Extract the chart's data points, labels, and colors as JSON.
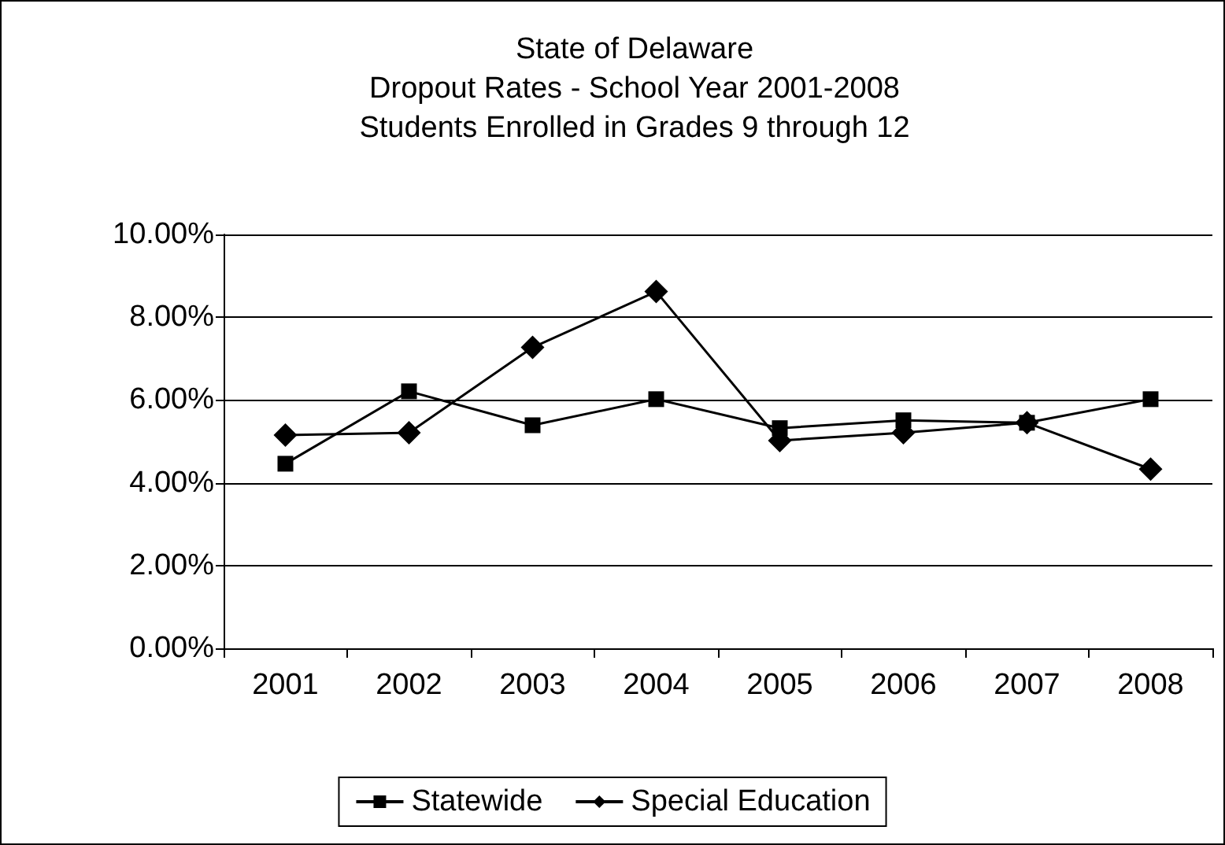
{
  "chart_data": {
    "type": "line",
    "title": "State of Delaware\nDropout Rates - School Year 2001-2008\nStudents Enrolled in Grades 9 through 12",
    "categories": [
      "2001",
      "2002",
      "2003",
      "2004",
      "2005",
      "2006",
      "2007",
      "2008"
    ],
    "series": [
      {
        "name": "Statewide",
        "color": "#000000",
        "marker": "square",
        "values": [
          4.46,
          6.21,
          5.39,
          6.02,
          5.32,
          5.51,
          5.45,
          6.02
        ]
      },
      {
        "name": "Special Education",
        "color": "#000000",
        "marker": "diamond",
        "values": [
          5.15,
          5.21,
          7.27,
          8.62,
          5.02,
          5.21,
          5.45,
          4.33
        ]
      }
    ],
    "ylim": [
      0,
      10
    ],
    "yticks": [
      {
        "value": 0,
        "label": "0.00%"
      },
      {
        "value": 2,
        "label": "2.00%"
      },
      {
        "value": 4,
        "label": "4.00%"
      },
      {
        "value": 6,
        "label": "6.00%"
      },
      {
        "value": 8,
        "label": "8.00%"
      },
      {
        "value": 10,
        "label": "10.00%"
      }
    ],
    "grid": "y",
    "legend": "bottom",
    "line_style": "solid"
  }
}
